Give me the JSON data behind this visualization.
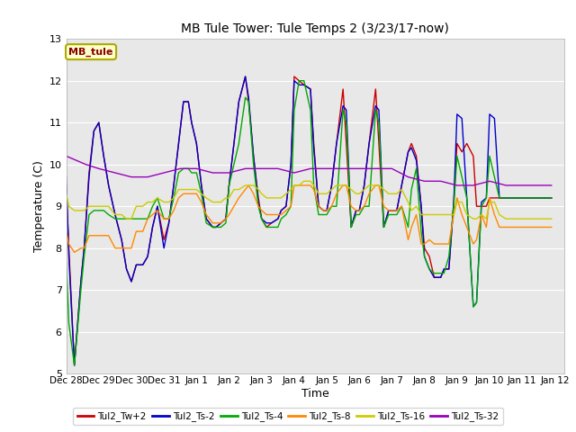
{
  "title": "MB Tule Tower: Tule Temps 2 (3/23/17-now)",
  "xlabel": "Time",
  "ylabel": "Temperature (C)",
  "ylim": [
    5.0,
    13.0
  ],
  "yticks": [
    5.0,
    6.0,
    7.0,
    8.0,
    9.0,
    10.0,
    11.0,
    12.0,
    13.0
  ],
  "bg_color": "#e8e8e8",
  "legend_label": "MB_tule",
  "series_colors": {
    "Tul2_Tw+2": "#cc0000",
    "Tul2_Ts-2": "#0000cc",
    "Tul2_Ts-4": "#00aa00",
    "Tul2_Ts-8": "#ff8800",
    "Tul2_Ts-16": "#cccc00",
    "Tul2_Ts-32": "#9900bb"
  },
  "x_tick_labels": [
    "Dec 28",
    "Dec 29",
    "Dec 30",
    "Dec 31",
    "Jan 1",
    "Jan 2",
    "Jan 3",
    "Jan 4",
    "Jan 5",
    "Jan 6",
    "Jan 7",
    "Jan 8",
    "Jan 9",
    "Jan 10",
    "Jan 11",
    "Jan 12"
  ],
  "series": {
    "Tul2_Tw+2": {
      "t": [
        0.0,
        0.08,
        0.25,
        0.45,
        0.55,
        0.7,
        0.85,
        1.0,
        1.15,
        1.3,
        1.5,
        1.7,
        1.85,
        2.0,
        2.15,
        2.35,
        2.5,
        2.65,
        2.8,
        3.0,
        3.15,
        3.3,
        3.45,
        3.6,
        3.75,
        3.85,
        4.0,
        4.15,
        4.3,
        4.5,
        4.6,
        4.75,
        4.9,
        5.0,
        5.15,
        5.3,
        5.5,
        5.6,
        5.75,
        5.9,
        6.0,
        6.15,
        6.3,
        6.5,
        6.6,
        6.75,
        6.9,
        7.0,
        7.15,
        7.3,
        7.5,
        7.6,
        7.75,
        7.9,
        8.0,
        8.15,
        8.3,
        8.5,
        8.6,
        8.75,
        8.9,
        9.0,
        9.15,
        9.3,
        9.5,
        9.6,
        9.75,
        9.9,
        10.0,
        10.15,
        10.3,
        10.5,
        10.6,
        10.75,
        10.9,
        11.0,
        11.15,
        11.3,
        11.5,
        11.6,
        11.75,
        11.9,
        12.0,
        12.15,
        12.3,
        12.5,
        12.6,
        12.75,
        12.9,
        13.0,
        13.15,
        13.3,
        13.5,
        13.6,
        13.75,
        13.9,
        14.0,
        14.15,
        14.3,
        14.5,
        14.6,
        14.75,
        14.9
      ],
      "v": [
        9.5,
        8.0,
        5.2,
        7.2,
        8.0,
        9.8,
        10.8,
        11.0,
        10.2,
        9.5,
        8.8,
        8.2,
        7.5,
        7.2,
        7.6,
        7.6,
        7.8,
        8.5,
        9.0,
        8.2,
        8.6,
        9.5,
        10.5,
        11.5,
        11.5,
        11.0,
        10.5,
        9.5,
        8.7,
        8.5,
        8.5,
        8.6,
        8.7,
        9.5,
        10.5,
        11.5,
        12.1,
        11.5,
        10.2,
        9.2,
        8.7,
        8.5,
        8.6,
        8.7,
        8.9,
        9.0,
        10.0,
        12.1,
        12.0,
        11.9,
        11.8,
        10.5,
        9.0,
        8.9,
        8.9,
        9.5,
        10.5,
        11.8,
        10.5,
        8.5,
        8.9,
        8.9,
        9.5,
        10.5,
        11.8,
        10.5,
        8.5,
        8.9,
        8.9,
        8.9,
        9.5,
        10.3,
        10.5,
        10.2,
        9.0,
        8.0,
        7.8,
        7.3,
        7.3,
        7.5,
        7.5,
        9.1,
        10.5,
        10.3,
        10.5,
        10.2,
        9.0,
        9.0,
        9.0,
        9.2,
        9.2,
        9.2,
        9.2,
        9.2,
        9.2,
        9.2,
        9.2,
        9.2,
        9.2,
        9.2,
        9.2,
        9.2,
        9.2
      ]
    },
    "Tul2_Ts-2": {
      "t": [
        0.0,
        0.08,
        0.25,
        0.45,
        0.55,
        0.7,
        0.85,
        1.0,
        1.15,
        1.3,
        1.5,
        1.7,
        1.85,
        2.0,
        2.15,
        2.35,
        2.5,
        2.65,
        2.8,
        3.0,
        3.15,
        3.3,
        3.45,
        3.6,
        3.75,
        3.85,
        4.0,
        4.15,
        4.3,
        4.5,
        4.6,
        4.75,
        4.9,
        5.0,
        5.15,
        5.3,
        5.5,
        5.6,
        5.75,
        5.9,
        6.0,
        6.15,
        6.3,
        6.5,
        6.6,
        6.75,
        6.9,
        7.0,
        7.15,
        7.3,
        7.5,
        7.6,
        7.75,
        7.9,
        8.0,
        8.15,
        8.3,
        8.5,
        8.6,
        8.75,
        8.9,
        9.0,
        9.15,
        9.3,
        9.5,
        9.6,
        9.75,
        9.9,
        10.0,
        10.15,
        10.3,
        10.5,
        10.6,
        10.75,
        10.9,
        11.0,
        11.15,
        11.3,
        11.5,
        11.6,
        11.75,
        11.9,
        12.0,
        12.15,
        12.3,
        12.5,
        12.6,
        12.75,
        12.9,
        13.0,
        13.15,
        13.3,
        13.5,
        13.6,
        13.75,
        13.9,
        14.0,
        14.15,
        14.3,
        14.5,
        14.6,
        14.75,
        14.9
      ],
      "v": [
        9.7,
        7.8,
        5.2,
        7.2,
        8.0,
        9.7,
        10.8,
        11.0,
        10.2,
        9.5,
        8.8,
        8.2,
        7.5,
        7.2,
        7.6,
        7.6,
        7.8,
        8.5,
        9.0,
        8.0,
        8.6,
        9.5,
        10.5,
        11.5,
        11.5,
        11.0,
        10.5,
        9.5,
        8.7,
        8.5,
        8.5,
        8.6,
        8.7,
        9.5,
        10.5,
        11.5,
        12.1,
        11.6,
        10.2,
        9.1,
        8.7,
        8.6,
        8.6,
        8.7,
        8.9,
        9.0,
        10.0,
        12.0,
        11.9,
        11.9,
        11.8,
        10.4,
        9.0,
        8.9,
        8.9,
        9.5,
        10.5,
        11.4,
        11.3,
        8.5,
        8.9,
        8.9,
        9.5,
        10.5,
        11.4,
        11.3,
        8.5,
        8.9,
        8.9,
        8.9,
        9.5,
        10.3,
        10.4,
        10.1,
        9.0,
        7.8,
        7.5,
        7.3,
        7.3,
        7.5,
        7.5,
        9.1,
        11.2,
        11.1,
        9.2,
        6.6,
        6.7,
        9.1,
        9.2,
        11.2,
        11.1,
        9.2,
        9.2,
        9.2,
        9.2,
        9.2,
        9.2,
        9.2,
        9.2,
        9.2,
        9.2,
        9.2,
        9.2
      ]
    },
    "Tul2_Ts-4": {
      "t": [
        0.0,
        0.08,
        0.25,
        0.45,
        0.55,
        0.7,
        0.85,
        1.0,
        1.15,
        1.3,
        1.5,
        1.7,
        1.85,
        2.0,
        2.15,
        2.35,
        2.5,
        2.65,
        2.8,
        3.0,
        3.15,
        3.3,
        3.45,
        3.6,
        3.75,
        3.85,
        4.0,
        4.15,
        4.3,
        4.5,
        4.6,
        4.75,
        4.9,
        5.0,
        5.15,
        5.3,
        5.5,
        5.6,
        5.75,
        5.9,
        6.0,
        6.15,
        6.3,
        6.5,
        6.6,
        6.75,
        6.9,
        7.0,
        7.15,
        7.3,
        7.5,
        7.6,
        7.75,
        7.9,
        8.0,
        8.15,
        8.3,
        8.5,
        8.6,
        8.75,
        8.9,
        9.0,
        9.15,
        9.3,
        9.5,
        9.6,
        9.75,
        9.9,
        10.0,
        10.15,
        10.3,
        10.5,
        10.6,
        10.75,
        10.9,
        11.0,
        11.15,
        11.3,
        11.5,
        11.6,
        11.75,
        11.9,
        12.0,
        12.15,
        12.3,
        12.5,
        12.6,
        12.75,
        12.9,
        13.0,
        13.15,
        13.3,
        13.5,
        13.6,
        13.75,
        13.9,
        14.0,
        14.15,
        14.3,
        14.5,
        14.6,
        14.75,
        14.9
      ],
      "v": [
        7.7,
        6.2,
        5.2,
        7.0,
        7.8,
        8.8,
        8.9,
        8.9,
        8.9,
        8.8,
        8.7,
        8.7,
        8.7,
        8.7,
        8.7,
        8.7,
        8.7,
        9.0,
        9.2,
        8.7,
        8.7,
        9.2,
        9.8,
        9.9,
        9.9,
        9.8,
        9.8,
        9.3,
        8.6,
        8.5,
        8.5,
        8.5,
        8.6,
        9.5,
        10.0,
        10.5,
        11.6,
        11.5,
        10.0,
        9.0,
        8.7,
        8.5,
        8.5,
        8.5,
        8.7,
        8.8,
        9.0,
        11.3,
        12.0,
        12.0,
        11.3,
        9.5,
        8.8,
        8.8,
        8.8,
        9.0,
        9.0,
        11.3,
        11.0,
        8.5,
        8.8,
        8.8,
        9.0,
        9.0,
        11.3,
        11.0,
        8.5,
        8.8,
        8.8,
        8.8,
        9.0,
        8.5,
        9.4,
        9.9,
        8.4,
        7.8,
        7.5,
        7.4,
        7.4,
        7.4,
        7.8,
        9.0,
        10.2,
        9.7,
        9.2,
        6.6,
        6.7,
        9.0,
        9.2,
        10.2,
        9.7,
        9.2,
        9.2,
        9.2,
        9.2,
        9.2,
        9.2,
        9.2,
        9.2,
        9.2,
        9.2,
        9.2,
        9.2
      ]
    },
    "Tul2_Ts-8": {
      "t": [
        0.0,
        0.08,
        0.25,
        0.45,
        0.55,
        0.7,
        0.85,
        1.0,
        1.15,
        1.3,
        1.5,
        1.7,
        1.85,
        2.0,
        2.15,
        2.35,
        2.5,
        2.65,
        2.8,
        3.0,
        3.15,
        3.3,
        3.45,
        3.6,
        3.75,
        3.85,
        4.0,
        4.15,
        4.3,
        4.5,
        4.6,
        4.75,
        4.9,
        5.0,
        5.15,
        5.3,
        5.5,
        5.6,
        5.75,
        5.9,
        6.0,
        6.15,
        6.3,
        6.5,
        6.6,
        6.75,
        6.9,
        7.0,
        7.15,
        7.3,
        7.5,
        7.6,
        7.75,
        7.9,
        8.0,
        8.15,
        8.3,
        8.5,
        8.6,
        8.75,
        8.9,
        9.0,
        9.15,
        9.3,
        9.5,
        9.6,
        9.75,
        9.9,
        10.0,
        10.15,
        10.3,
        10.5,
        10.6,
        10.75,
        10.9,
        11.0,
        11.15,
        11.3,
        11.5,
        11.6,
        11.75,
        11.9,
        12.0,
        12.15,
        12.3,
        12.5,
        12.6,
        12.75,
        12.9,
        13.0,
        13.15,
        13.3,
        13.5,
        13.6,
        13.75,
        13.9,
        14.0,
        14.15,
        14.3,
        14.5,
        14.6,
        14.75,
        14.9
      ],
      "v": [
        8.4,
        8.1,
        7.9,
        8.0,
        8.0,
        8.3,
        8.3,
        8.3,
        8.3,
        8.3,
        8.0,
        8.0,
        8.0,
        8.0,
        8.4,
        8.4,
        8.7,
        8.8,
        8.9,
        8.7,
        8.7,
        8.9,
        9.2,
        9.3,
        9.3,
        9.3,
        9.3,
        9.1,
        8.8,
        8.6,
        8.6,
        8.6,
        8.7,
        8.8,
        9.0,
        9.2,
        9.4,
        9.5,
        9.3,
        9.0,
        8.9,
        8.8,
        8.8,
        8.8,
        8.8,
        8.9,
        9.0,
        9.5,
        9.5,
        9.5,
        9.5,
        9.4,
        9.0,
        8.9,
        8.9,
        9.0,
        9.3,
        9.5,
        9.5,
        9.0,
        8.9,
        8.9,
        9.0,
        9.3,
        9.5,
        9.5,
        9.0,
        8.9,
        8.9,
        8.9,
        9.0,
        8.2,
        8.5,
        8.8,
        8.1,
        8.1,
        8.2,
        8.1,
        8.1,
        8.1,
        8.1,
        8.8,
        9.2,
        8.8,
        8.5,
        8.1,
        8.2,
        8.8,
        8.5,
        9.2,
        8.8,
        8.5,
        8.5,
        8.5,
        8.5,
        8.5,
        8.5,
        8.5,
        8.5,
        8.5,
        8.5,
        8.5,
        8.5
      ]
    },
    "Tul2_Ts-16": {
      "t": [
        0.0,
        0.08,
        0.25,
        0.45,
        0.55,
        0.7,
        0.85,
        1.0,
        1.15,
        1.3,
        1.5,
        1.7,
        1.85,
        2.0,
        2.15,
        2.35,
        2.5,
        2.65,
        2.8,
        3.0,
        3.15,
        3.3,
        3.45,
        3.6,
        3.75,
        3.85,
        4.0,
        4.15,
        4.3,
        4.5,
        4.6,
        4.75,
        4.9,
        5.0,
        5.15,
        5.3,
        5.5,
        5.6,
        5.75,
        5.9,
        6.0,
        6.15,
        6.3,
        6.5,
        6.6,
        6.75,
        6.9,
        7.0,
        7.15,
        7.3,
        7.5,
        7.6,
        7.75,
        7.9,
        8.0,
        8.15,
        8.3,
        8.5,
        8.6,
        8.75,
        8.9,
        9.0,
        9.15,
        9.3,
        9.5,
        9.6,
        9.75,
        9.9,
        10.0,
        10.15,
        10.3,
        10.5,
        10.6,
        10.75,
        10.9,
        11.0,
        11.15,
        11.3,
        11.5,
        11.6,
        11.75,
        11.9,
        12.0,
        12.15,
        12.3,
        12.5,
        12.6,
        12.75,
        12.9,
        13.0,
        13.15,
        13.3,
        13.5,
        13.6,
        13.75,
        13.9,
        14.0,
        14.15,
        14.3,
        14.5,
        14.6,
        14.75,
        14.9
      ],
      "v": [
        9.3,
        9.0,
        8.9,
        8.9,
        8.9,
        9.0,
        9.0,
        9.0,
        9.0,
        9.0,
        8.8,
        8.8,
        8.7,
        8.7,
        9.0,
        9.0,
        9.1,
        9.1,
        9.2,
        9.1,
        9.1,
        9.2,
        9.4,
        9.4,
        9.4,
        9.4,
        9.4,
        9.3,
        9.2,
        9.1,
        9.1,
        9.1,
        9.2,
        9.2,
        9.4,
        9.4,
        9.5,
        9.5,
        9.5,
        9.4,
        9.3,
        9.2,
        9.2,
        9.2,
        9.2,
        9.3,
        9.4,
        9.5,
        9.5,
        9.6,
        9.6,
        9.5,
        9.3,
        9.3,
        9.3,
        9.4,
        9.5,
        9.5,
        9.5,
        9.4,
        9.3,
        9.3,
        9.4,
        9.5,
        9.5,
        9.5,
        9.4,
        9.3,
        9.3,
        9.3,
        9.4,
        9.1,
        8.9,
        9.0,
        8.8,
        8.8,
        8.8,
        8.8,
        8.8,
        8.8,
        8.8,
        8.8,
        9.1,
        9.1,
        8.8,
        8.7,
        8.7,
        8.8,
        8.7,
        9.1,
        9.1,
        8.8,
        8.7,
        8.7,
        8.7,
        8.7,
        8.7,
        8.7,
        8.7,
        8.7,
        8.7,
        8.7,
        8.7
      ]
    },
    "Tul2_Ts-32": {
      "t": [
        0.0,
        0.3,
        0.6,
        1.0,
        1.5,
        2.0,
        2.5,
        3.0,
        3.5,
        4.0,
        4.5,
        5.0,
        5.5,
        6.0,
        6.5,
        7.0,
        7.5,
        8.0,
        8.5,
        9.0,
        9.5,
        10.0,
        10.5,
        11.0,
        11.5,
        12.0,
        12.5,
        13.0,
        13.5,
        14.0,
        14.5,
        14.9
      ],
      "v": [
        10.2,
        10.1,
        10.0,
        9.9,
        9.8,
        9.7,
        9.7,
        9.8,
        9.9,
        9.9,
        9.8,
        9.8,
        9.9,
        9.9,
        9.9,
        9.8,
        9.9,
        9.9,
        9.9,
        9.9,
        9.9,
        9.9,
        9.7,
        9.6,
        9.6,
        9.5,
        9.5,
        9.6,
        9.5,
        9.5,
        9.5,
        9.5
      ]
    }
  }
}
